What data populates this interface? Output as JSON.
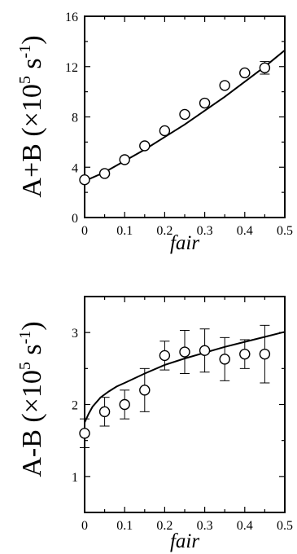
{
  "chart_data": [
    {
      "type": "scatter",
      "title": "",
      "xlabel": "fair",
      "ylabel_main": "A+B (×10",
      "ylabel_exp": "5",
      "ylabel_unit": " s",
      "ylabel_unit_exp": "-1",
      "ylabel_close": ")",
      "xlim": [
        0,
        0.5
      ],
      "ylim": [
        0,
        16
      ],
      "xticks": [
        0,
        0.1,
        0.2,
        0.3,
        0.4,
        0.5
      ],
      "xtick_labels": [
        "0",
        "0.1",
        "0.2",
        "0.3",
        "0.4",
        "0.5"
      ],
      "yticks": [
        0,
        4,
        8,
        12,
        16
      ],
      "ytick_labels": [
        "0",
        "4",
        "8",
        "12",
        "16"
      ],
      "grid": false,
      "series": [
        {
          "kind": "points",
          "marker": "open-circle",
          "x": [
            0,
            0.05,
            0.1,
            0.15,
            0.2,
            0.25,
            0.3,
            0.35,
            0.4,
            0.45
          ],
          "y": [
            3.0,
            3.5,
            4.6,
            5.7,
            6.9,
            8.2,
            9.1,
            10.5,
            11.5,
            11.9
          ],
          "yerr": [
            0,
            0,
            0,
            0,
            0,
            0,
            0,
            0,
            0,
            0.5
          ]
        },
        {
          "kind": "line",
          "x": [
            0,
            0.05,
            0.1,
            0.15,
            0.2,
            0.25,
            0.3,
            0.35,
            0.4,
            0.45,
            0.5
          ],
          "y": [
            2.9,
            3.6,
            4.5,
            5.4,
            6.4,
            7.4,
            8.5,
            9.6,
            10.8,
            12.0,
            13.3
          ]
        }
      ]
    },
    {
      "type": "scatter",
      "title": "",
      "xlabel": "fair",
      "ylabel_main": "A-B (×10",
      "ylabel_exp": "5",
      "ylabel_unit": " s",
      "ylabel_unit_exp": "-1",
      "ylabel_close": ")",
      "xlim": [
        0,
        0.5
      ],
      "ylim": [
        0.5,
        3.5
      ],
      "xticks": [
        0,
        0.1,
        0.2,
        0.3,
        0.4,
        0.5
      ],
      "xtick_labels": [
        "0",
        "0.1",
        "0.2",
        "0.3",
        "0.4",
        "0.5"
      ],
      "yticks": [
        1,
        2,
        3
      ],
      "ytick_labels": [
        "1",
        "2",
        "3"
      ],
      "grid": false,
      "series": [
        {
          "kind": "points",
          "marker": "open-circle",
          "x": [
            0,
            0.05,
            0.1,
            0.15,
            0.2,
            0.25,
            0.3,
            0.35,
            0.4,
            0.45
          ],
          "y": [
            1.6,
            1.9,
            2.0,
            2.2,
            2.68,
            2.73,
            2.75,
            2.63,
            2.7,
            2.7
          ],
          "yerr": [
            0.2,
            0.2,
            0.2,
            0.3,
            0.2,
            0.3,
            0.3,
            0.3,
            0.2,
            0.4
          ]
        },
        {
          "kind": "line",
          "x": [
            0,
            0.01,
            0.02,
            0.04,
            0.06,
            0.08,
            0.1,
            0.15,
            0.2,
            0.25,
            0.3,
            0.35,
            0.4,
            0.45,
            0.5
          ],
          "y": [
            1.75,
            1.87,
            1.97,
            2.1,
            2.18,
            2.25,
            2.3,
            2.43,
            2.55,
            2.64,
            2.72,
            2.8,
            2.87,
            2.94,
            3.01
          ]
        }
      ]
    }
  ]
}
